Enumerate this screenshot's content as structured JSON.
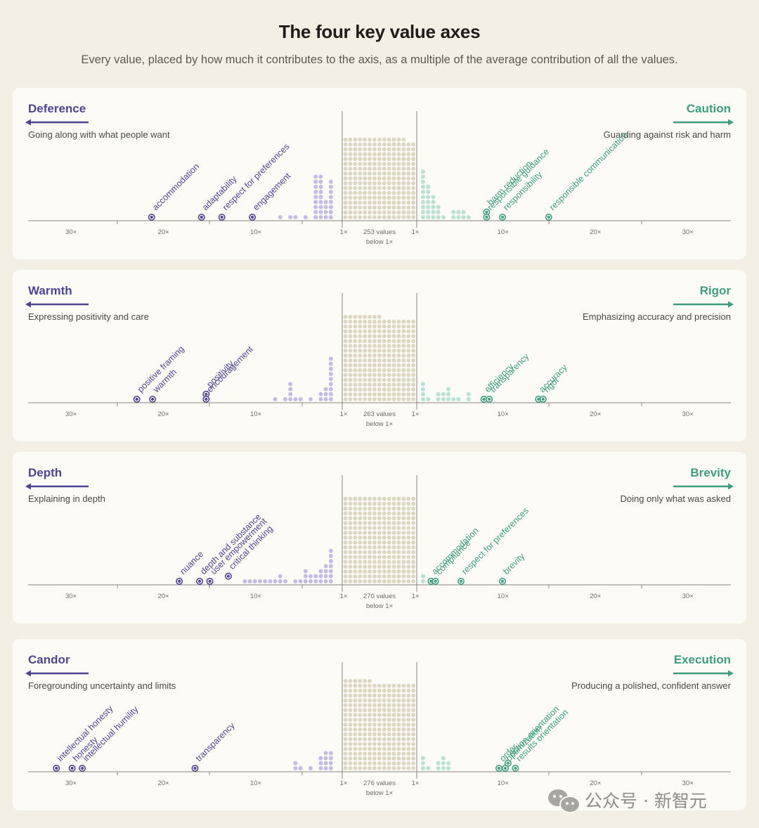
{
  "header": {
    "title": "The four key value axes",
    "subtitle": "Every value, placed by how much it contributes to the axis, as a multiple of the average contribution of all the values."
  },
  "colors": {
    "left": "#4e4590",
    "left_light": "#c3bde3",
    "right": "#3f9c7e",
    "right_light": "#b8e2d2",
    "neutral": "#ddd6c3",
    "axis": "#8b867e"
  },
  "watermark": {
    "text": "公众号 · 新智元",
    "icon": "wechat-icon"
  },
  "chart_data": [
    {
      "type": "scatter",
      "left_label": "Deference",
      "left_desc": "Going along with what people want",
      "right_label": "Caution",
      "right_desc": "Guarding against risk and harm",
      "center_label": [
        "253 values",
        "below 1×"
      ],
      "ticks": [
        "30×",
        "20×",
        "10×",
        "1×",
        "1×",
        "10×",
        "20×",
        "30×"
      ],
      "block_count": 253,
      "left_dist": [
        0,
        8,
        4,
        9,
        9,
        0,
        1,
        0,
        1,
        1,
        0,
        1
      ],
      "right_dist": [
        10,
        7,
        5,
        3,
        1,
        0,
        2,
        2,
        2,
        1
      ],
      "left_labeled": [
        {
          "name": "accommodation",
          "x": 21.2,
          "stack": 0
        },
        {
          "name": "adaptability",
          "x": 15.8,
          "stack": 0
        },
        {
          "name": "respect for preferences",
          "x": 13.6,
          "stack": 0
        },
        {
          "name": "engagement",
          "x": 10.3,
          "stack": 0
        }
      ],
      "right_labeled": [
        {
          "name": "harm reduction",
          "x": 8.2,
          "stack": 1
        },
        {
          "name": "responsible guidance",
          "x": 8.2,
          "stack": 0
        },
        {
          "name": "responsibility",
          "x": 10.0,
          "stack": 0
        },
        {
          "name": "responsible communication",
          "x": 15.0,
          "stack": 0
        }
      ]
    },
    {
      "type": "scatter",
      "left_label": "Warmth",
      "left_desc": "Expressing positivity and care",
      "right_label": "Rigor",
      "right_desc": "Emphasizing accuracy and precision",
      "center_label": [
        "263 values",
        "below 1×"
      ],
      "ticks": [
        "30×",
        "20×",
        "10×",
        "1×",
        "1×",
        "10×",
        "20×",
        "30×"
      ],
      "block_count": 263,
      "left_dist": [
        0,
        9,
        3,
        2,
        0,
        1,
        0,
        1,
        1,
        4,
        1,
        0,
        1
      ],
      "right_dist": [
        4,
        1,
        0,
        2,
        2,
        3,
        1,
        1,
        0,
        2
      ],
      "left_labeled": [
        {
          "name": "positive framing",
          "x": 22.8,
          "stack": 0
        },
        {
          "name": "warmth",
          "x": 21.1,
          "stack": 0
        },
        {
          "name": "positivity",
          "x": 15.3,
          "stack": 1
        },
        {
          "name": "encouragement",
          "x": 15.3,
          "stack": 0
        }
      ],
      "right_labeled": [
        {
          "name": "efficiency",
          "x": 7.9,
          "stack": 0
        },
        {
          "name": "transparency",
          "x": 8.5,
          "stack": 0
        },
        {
          "name": "accuracy",
          "x": 13.9,
          "stack": 0
        },
        {
          "name": "rigor",
          "x": 14.4,
          "stack": 0
        }
      ]
    },
    {
      "type": "scatter",
      "left_label": "Depth",
      "left_desc": "Explaining in depth",
      "right_label": "Brevity",
      "right_desc": "Doing only what was asked",
      "center_label": [
        "270 values",
        "below 1×"
      ],
      "ticks": [
        "30×",
        "20×",
        "10×",
        "1×",
        "1×",
        "10×",
        "20×",
        "30×"
      ],
      "block_count": 270,
      "left_dist": [
        0,
        7,
        4,
        3,
        2,
        2,
        3,
        1,
        1,
        0,
        1,
        2,
        1,
        1,
        1,
        1,
        1,
        1,
        1
      ],
      "right_dist": [
        2
      ],
      "left_labeled": [
        {
          "name": "nuance",
          "x": 18.2,
          "stack": 0
        },
        {
          "name": "depth and substance",
          "x": 16.0,
          "stack": 0
        },
        {
          "name": "user empowerment",
          "x": 14.9,
          "stack": 0
        },
        {
          "name": "critical thinking",
          "x": 12.9,
          "stack": 1
        }
      ],
      "right_labeled": [
        {
          "name": "accommodation",
          "x": 1.9,
          "stack": 0
        },
        {
          "name": "compliance",
          "x": 2.4,
          "stack": 0
        },
        {
          "name": "respect for preferences",
          "x": 5.3,
          "stack": 0
        },
        {
          "name": "brevity",
          "x": 10.0,
          "stack": 0
        }
      ]
    },
    {
      "type": "scatter",
      "left_label": "Candor",
      "left_desc": "Foregrounding uncertainty and limits",
      "right_label": "Execution",
      "right_desc": "Producing a polished, confident answer",
      "center_label": [
        "276 values",
        "below 1×"
      ],
      "ticks": [
        "30×",
        "20×",
        "10×",
        "1×",
        "1×",
        "10×",
        "20×",
        "30×"
      ],
      "block_count": 276,
      "left_dist": [
        0,
        4,
        4,
        3,
        0,
        1,
        0,
        1,
        2,
        0
      ],
      "right_dist": [
        3,
        1,
        0,
        2,
        3,
        2
      ],
      "left_labeled": [
        {
          "name": "intellectual honesty",
          "x": 31.5,
          "stack": 0
        },
        {
          "name": "honesty",
          "x": 29.8,
          "stack": 0
        },
        {
          "name": "intellectual humility",
          "x": 28.7,
          "stack": 0
        },
        {
          "name": "transparency",
          "x": 16.5,
          "stack": 0
        }
      ],
      "right_labeled": [
        {
          "name": "order",
          "x": 9.6,
          "stack": 0
        },
        {
          "name": "action orientation",
          "x": 10.6,
          "stack": 1
        },
        {
          "name": "optimization",
          "x": 10.3,
          "stack": 0
        },
        {
          "name": "results orientation",
          "x": 11.4,
          "stack": 0
        }
      ]
    }
  ]
}
